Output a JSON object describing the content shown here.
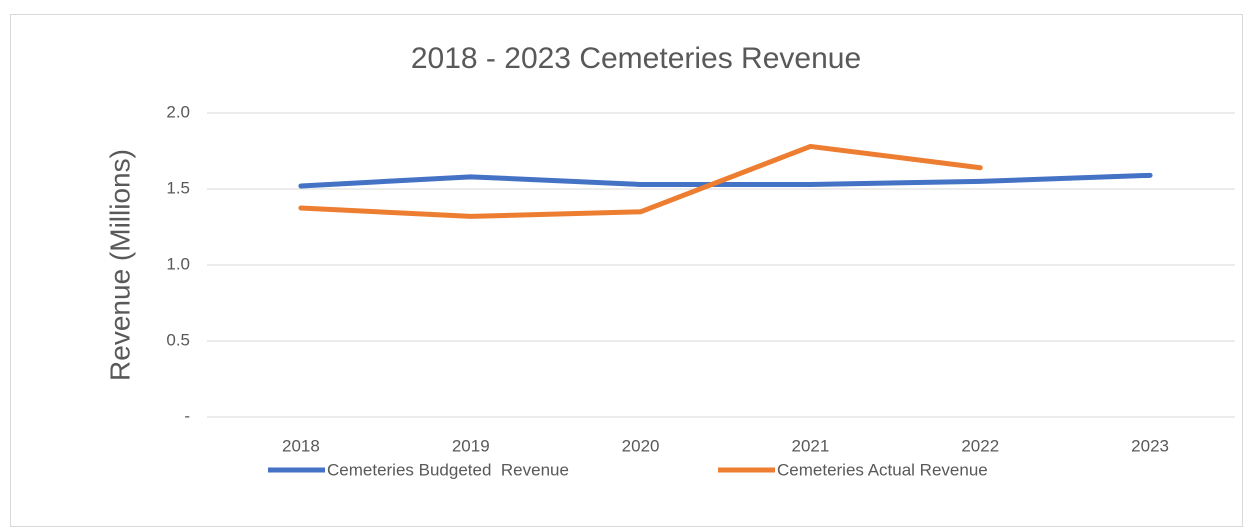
{
  "chart_data": {
    "type": "line",
    "title": "2018 - 2023 Cemeteries Revenue",
    "y_axis_label": "Revenue (Millions)",
    "categories": [
      "2018",
      "2019",
      "2020",
      "2021",
      "2022",
      "2023"
    ],
    "series": [
      {
        "name": "Cemeteries Budgeted  Revenue",
        "color": "#4472c4",
        "values": [
          1.52,
          1.58,
          1.53,
          1.53,
          1.55,
          1.59
        ]
      },
      {
        "name": "Cemeteries Actual Revenue",
        "color": "#ed7d31",
        "values": [
          1.375,
          1.32,
          1.35,
          1.78,
          1.64,
          null
        ]
      }
    ],
    "ylim": [
      0,
      2
    ],
    "yticks": [
      {
        "value": 0,
        "label": "-"
      },
      0.5,
      {
        "value": 1,
        "label": "1.0"
      },
      1.5,
      {
        "value": 2,
        "label": "2.0"
      }
    ],
    "grid": true,
    "legend": "bottom"
  }
}
